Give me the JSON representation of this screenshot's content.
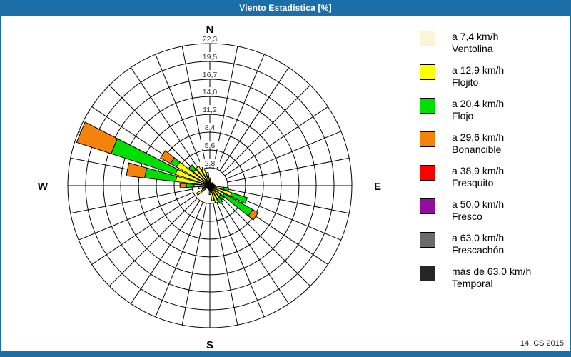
{
  "window": {
    "title": "Viento Estadística [%]",
    "footer": "14. CS 2015",
    "accent_color": "#1A6FA8"
  },
  "compass": {
    "north": "N",
    "east": "E",
    "south": "S",
    "west": "W"
  },
  "chart_data": {
    "type": "windrose",
    "title": "Viento Estadística [%]",
    "units": "%",
    "sector_count": 32,
    "sector_width_deg": 11.25,
    "grid": "polar, 8 rings, 32 spokes",
    "ring_values": [
      2.8,
      5.6,
      8.4,
      11.2,
      14.0,
      16.7,
      19.5,
      22.3
    ],
    "ring_labels": [
      "2,8",
      "5,6",
      "8,4",
      "11,2",
      "14,0",
      "16,7",
      "19,5",
      "22,3"
    ],
    "rmax_value": 22.3,
    "speed_classes": [
      {
        "label_speed": "a 7,4 km/h",
        "label_name": "Ventolina",
        "color": "#FBF4D5"
      },
      {
        "label_speed": "a 12,9 km/h",
        "label_name": "Flojito",
        "color": "#FFFF00"
      },
      {
        "label_speed": "a 20,4 km/h",
        "label_name": "Flojo",
        "color": "#00E000"
      },
      {
        "label_speed": "a 29,6 km/h",
        "label_name": "Bonancible",
        "color": "#F5820A"
      },
      {
        "label_speed": "a 38,9 km/h",
        "label_name": "Fresquito",
        "color": "#FF0000"
      },
      {
        "label_speed": "a 50,0 km/h",
        "label_name": "Fresco",
        "color": "#910F9E"
      },
      {
        "label_speed": "a 63,0 km/h",
        "label_name": "Frescachón",
        "color": "#6B6B6B"
      },
      {
        "label_speed": "más de 63,0 km/h",
        "label_name": "Temporal",
        "color": "#262626"
      }
    ],
    "bars": [
      {
        "direction_deg": 0.0,
        "values": [
          0.3,
          0.9
        ]
      },
      {
        "direction_deg": 11.25,
        "values": [
          0.2,
          0.4
        ]
      },
      {
        "direction_deg": 22.5,
        "values": [
          0.2,
          0.3
        ]
      },
      {
        "direction_deg": 33.75,
        "values": [
          0.2,
          0.3
        ]
      },
      {
        "direction_deg": 45.0,
        "values": [
          0.2,
          0.4
        ]
      },
      {
        "direction_deg": 56.25,
        "values": [
          0.2,
          0.3
        ]
      },
      {
        "direction_deg": 67.5,
        "values": [
          0.2,
          0.4
        ]
      },
      {
        "direction_deg": 78.75,
        "values": [
          0.2,
          0.5
        ]
      },
      {
        "direction_deg": 90.0,
        "values": [
          0.3,
          0.6
        ]
      },
      {
        "direction_deg": 101.25,
        "values": [
          0.4,
          1.8,
          0.8
        ]
      },
      {
        "direction_deg": 112.5,
        "values": [
          0.6,
          3.0,
          2.6
        ]
      },
      {
        "direction_deg": 123.75,
        "values": [
          0.8,
          1.8,
          5.1,
          1.0
        ]
      },
      {
        "direction_deg": 135.0,
        "values": [
          0.4,
          1.8,
          0.7
        ]
      },
      {
        "direction_deg": 146.25,
        "values": [
          0.4,
          2.0,
          0.8
        ]
      },
      {
        "direction_deg": 157.5,
        "values": [
          0.3,
          2.6
        ]
      },
      {
        "direction_deg": 168.75,
        "values": [
          0.3,
          2.1
        ]
      },
      {
        "direction_deg": 180.0,
        "values": [
          0.3,
          1.1
        ]
      },
      {
        "direction_deg": 191.25,
        "values": [
          0.2,
          0.5
        ]
      },
      {
        "direction_deg": 202.5,
        "values": [
          0.2,
          0.4
        ]
      },
      {
        "direction_deg": 213.75,
        "values": [
          0.2,
          0.3
        ]
      },
      {
        "direction_deg": 225.0,
        "values": [
          0.2,
          0.4
        ]
      },
      {
        "direction_deg": 236.25,
        "values": [
          0.3,
          2.1
        ]
      },
      {
        "direction_deg": 247.5,
        "values": [
          0.3,
          1.0
        ]
      },
      {
        "direction_deg": 258.75,
        "values": [
          0.3,
          1.5
        ]
      },
      {
        "direction_deg": 270.0,
        "values": [
          1.0,
          1.5,
          1.2,
          1.0
        ]
      },
      {
        "direction_deg": 281.25,
        "values": [
          1.3,
          4.1,
          4.9,
          2.9
        ]
      },
      {
        "direction_deg": 292.5,
        "values": [
          1.5,
          4.2,
          10.6,
          5.7
        ]
      },
      {
        "direction_deg": 303.75,
        "values": [
          1.2,
          4.8,
          1.1,
          1.8
        ]
      },
      {
        "direction_deg": 315.0,
        "values": [
          0.8,
          2.6,
          0.9
        ]
      },
      {
        "direction_deg": 326.25,
        "values": [
          0.7,
          2.8
        ]
      },
      {
        "direction_deg": 337.5,
        "values": [
          0.6,
          2.2
        ]
      },
      {
        "direction_deg": 348.75,
        "values": [
          0.5,
          1.6
        ]
      }
    ]
  }
}
